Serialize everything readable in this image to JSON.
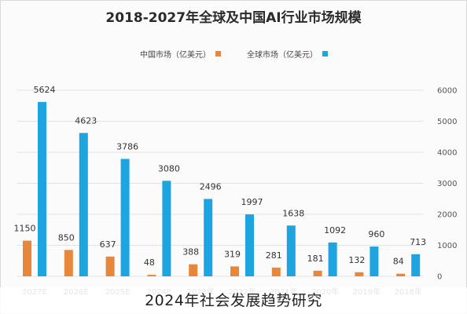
{
  "caption": "2024年社会发展趋势研究",
  "colors": {
    "china": "#e8873a",
    "global": "#1ea4df"
  },
  "chart_data": {
    "type": "bar",
    "title": "2018-2027年全球及中国AI行业市场规模",
    "categories": [
      "2027E",
      "2026E",
      "2025E",
      "2024E",
      "2023年",
      "2022年",
      "2021年",
      "2020年",
      "2019年",
      "2018年"
    ],
    "series": [
      {
        "name": "中国市场（亿美元）",
        "values": [
          1150,
          850,
          637,
          48,
          388,
          319,
          281,
          181,
          132,
          84
        ]
      },
      {
        "name": "全球市场（亿美元）",
        "values": [
          5624,
          4623,
          3786,
          3080,
          2496,
          1997,
          1638,
          1092,
          960,
          713
        ]
      }
    ],
    "yticks": [
      0,
      1000,
      2000,
      3000,
      4000,
      5000,
      6000
    ],
    "ylim": [
      0,
      6000
    ],
    "axis_position": "right",
    "grid": true,
    "legend_position": "top"
  }
}
